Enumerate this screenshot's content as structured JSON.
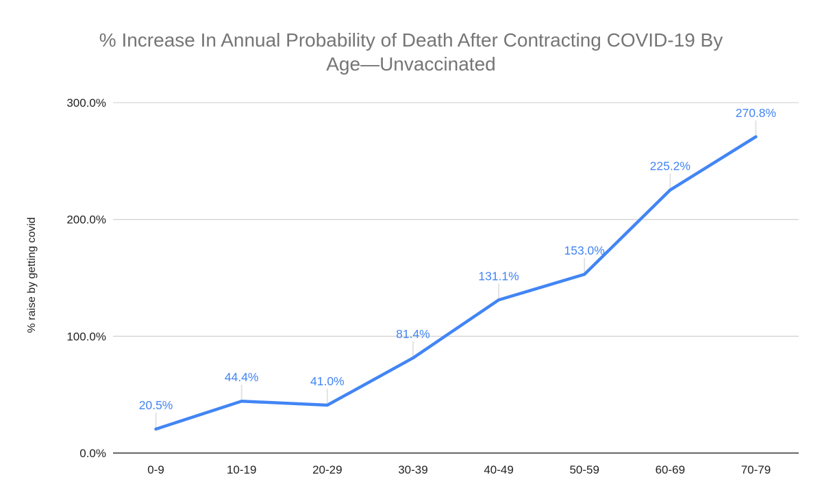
{
  "title": {
    "line1": "% Increase In Annual Probability of Death After Contracting COVID-19 By",
    "line2": "Age—Unvaccinated"
  },
  "chart_data": {
    "type": "line",
    "title": "% Increase In Annual Probability of Death After Contracting COVID-19 By Age—Unvaccinated",
    "xlabel": "",
    "ylabel": "% raise by getting covid",
    "categories": [
      "0-9",
      "10-19",
      "20-29",
      "30-39",
      "40-49",
      "50-59",
      "60-69",
      "70-79"
    ],
    "values": [
      20.5,
      44.4,
      41.0,
      81.4,
      131.1,
      153.0,
      225.2,
      270.8
    ],
    "data_labels": [
      "20.5%",
      "44.4%",
      "41.0%",
      "81.4%",
      "131.1%",
      "153.0%",
      "225.2%",
      "270.8%"
    ],
    "ylim": [
      0,
      300
    ],
    "y_ticks": [
      {
        "value": 0,
        "label": "0.0%"
      },
      {
        "value": 100,
        "label": "100.0%"
      },
      {
        "value": 200,
        "label": "200.0%"
      },
      {
        "value": 300,
        "label": "300.0%"
      }
    ],
    "grid": true,
    "legend": "none",
    "colors": {
      "line": "#4285f4",
      "data_label": "#4285f4",
      "grid": "#cccccc",
      "axis": "#333333",
      "leader": "#e0e0e0",
      "title": "#757575",
      "tick_label": "#222222"
    }
  }
}
